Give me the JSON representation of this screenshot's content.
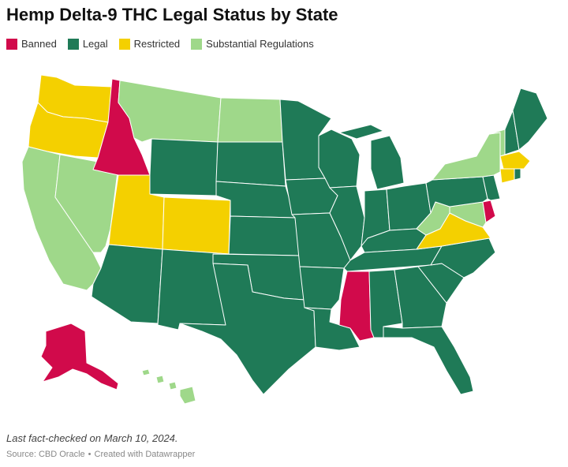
{
  "title": "Hemp Delta-9 THC Legal Status by State",
  "legend": [
    {
      "label": "Banned",
      "color": "#d10a4b"
    },
    {
      "label": "Legal",
      "color": "#1f7a57"
    },
    {
      "label": "Restricted",
      "color": "#f4d000"
    },
    {
      "label": "Substantial Regulations",
      "color": "#9fd88a"
    }
  ],
  "colors": {
    "banned": "#d10a4b",
    "legal": "#1f7a57",
    "restricted": "#f4d000",
    "substantial": "#9fd88a"
  },
  "states": {
    "banned": [
      "Idaho",
      "Mississippi",
      "Alaska",
      "Delaware"
    ],
    "restricted": [
      "Washington",
      "Oregon",
      "Utah",
      "Colorado",
      "Virginia",
      "Connecticut",
      "Massachusetts"
    ],
    "substantial": [
      "California",
      "Nevada",
      "Montana",
      "North Dakota",
      "New York",
      "Vermont",
      "West Virginia",
      "Maryland",
      "Hawaii"
    ],
    "legal": [
      "Arizona",
      "New Mexico",
      "Texas",
      "Oklahoma",
      "Kansas",
      "Nebraska",
      "South Dakota",
      "Wyoming",
      "Minnesota",
      "Iowa",
      "Missouri",
      "Arkansas",
      "Louisiana",
      "Wisconsin",
      "Illinois",
      "Michigan",
      "Indiana",
      "Ohio",
      "Kentucky",
      "Tennessee",
      "Alabama",
      "Georgia",
      "Florida",
      "South Carolina",
      "North Carolina",
      "Pennsylvania",
      "New Jersey",
      "New Hampshire",
      "Maine",
      "Rhode Island"
    ]
  },
  "footer": {
    "note": "Last fact-checked on March 10, 2024.",
    "source": "Source: CBD Oracle",
    "credit": "Created with Datawrapper"
  }
}
